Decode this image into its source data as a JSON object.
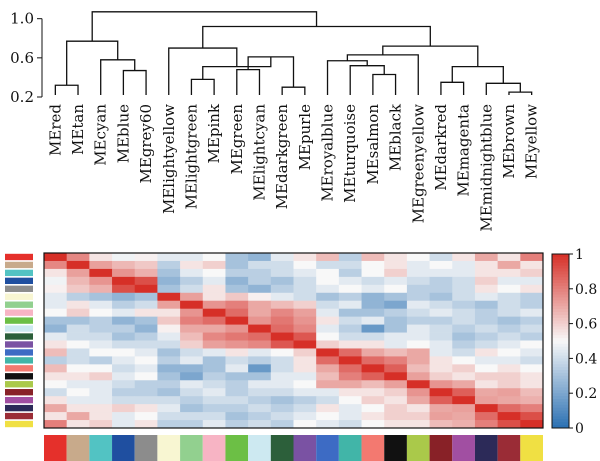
{
  "chart_data": [
    {
      "type": "dendrogram",
      "yticks": [
        "1.0",
        "0.6",
        "0.2"
      ],
      "ytick_values": [
        1.0,
        0.6,
        0.2
      ],
      "ylim": [
        0.2,
        1.15
      ],
      "leaves": [
        "MEred",
        "MEtan",
        "MEcyan",
        "MEblue",
        "MEgrey60",
        "MElightyellow",
        "MElightgreen",
        "MEpink",
        "MEgreen",
        "MElightcyan",
        "MEdarkgreen",
        "MEpurle",
        "MEroyalblue",
        "MEturquoise",
        "MEsalmon",
        "MEblack",
        "MEgreenyellow",
        "MEdarkred",
        "MEmagenta",
        "MEmidnightblue",
        "MEbrown",
        "MEyellow"
      ],
      "merges": [
        {
          "a": "MEred",
          "b": "MEtan",
          "height": 0.32,
          "id": "n1"
        },
        {
          "a": "MEblue",
          "b": "MEgrey60",
          "height": 0.47,
          "id": "n2"
        },
        {
          "a": "MEcyan",
          "b": "n2",
          "height": 0.58,
          "id": "n3"
        },
        {
          "a": "n1",
          "b": "n3",
          "height": 0.77,
          "id": "n4"
        },
        {
          "a": "MEgreen",
          "b": "MElightcyan",
          "height": 0.48,
          "id": "n5"
        },
        {
          "a": "MEdarkgreen",
          "b": "MEpurle",
          "height": 0.3,
          "id": "n6"
        },
        {
          "a": "n5",
          "b": "n6",
          "height": 0.61,
          "id": "n7"
        },
        {
          "a": "MElightgreen",
          "b": "MEpink",
          "height": 0.38,
          "id": "n8"
        },
        {
          "a": "n8",
          "b": "n7",
          "height": 0.51,
          "id": "n9"
        },
        {
          "a": "MElightyellow",
          "b": "n9",
          "height": 0.7,
          "id": "n10"
        },
        {
          "a": "MEsalmon",
          "b": "MEblack",
          "height": 0.43,
          "id": "n11"
        },
        {
          "a": "MEturquoise",
          "b": "n11",
          "height": 0.52,
          "id": "n12"
        },
        {
          "a": "MEroyalblue",
          "b": "n12",
          "height": 0.57,
          "id": "n13"
        },
        {
          "a": "MEgreenyellow",
          "b": "n13",
          "height": 0.63,
          "id": "n14"
        },
        {
          "a": "MEdarkred",
          "b": "MEmagenta",
          "height": 0.35,
          "id": "n15"
        },
        {
          "a": "MEbrown",
          "b": "MEyellow",
          "height": 0.25,
          "id": "n16"
        },
        {
          "a": "MEmidnightblue",
          "b": "n16",
          "height": 0.34,
          "id": "n17"
        },
        {
          "a": "n15",
          "b": "n17",
          "height": 0.51,
          "id": "n18"
        },
        {
          "a": "n14",
          "b": "n18",
          "height": 0.72,
          "id": "n19"
        },
        {
          "a": "n10",
          "b": "n19",
          "height": 0.92,
          "id": "n20"
        },
        {
          "a": "n4",
          "b": "n20",
          "height": 1.07,
          "id": "n21"
        }
      ]
    },
    {
      "type": "heatmap",
      "module_colors": [
        "#e5302b",
        "#c8aa8b",
        "#52c3c3",
        "#1f4fa0",
        "#8c8c8c",
        "#f8f6d2",
        "#92d08f",
        "#f7b4c4",
        "#6cbf45",
        "#cde9f1",
        "#2c5f3a",
        "#7a52a3",
        "#3d6bc4",
        "#41b5a8",
        "#f37970",
        "#111111",
        "#aac94a",
        "#882127",
        "#a14fa2",
        "#2c2a58",
        "#9a2c36",
        "#f0e043"
      ],
      "colorbar": {
        "ticks": [
          "1",
          "0.8",
          "0.6",
          "0.4",
          "0.2",
          "0"
        ],
        "tick_values": [
          1.0,
          0.8,
          0.6,
          0.4,
          0.2,
          0.0
        ],
        "range": [
          0,
          1
        ]
      },
      "values": [
        [
          1.0,
          0.78,
          0.55,
          0.48,
          0.52,
          0.45,
          0.45,
          0.5,
          0.3,
          0.25,
          0.45,
          0.55,
          0.65,
          0.35,
          0.65,
          0.55,
          0.5,
          0.4,
          0.55,
          0.7,
          0.55,
          0.8
        ],
        [
          0.78,
          1.0,
          0.72,
          0.66,
          0.62,
          0.35,
          0.55,
          0.6,
          0.3,
          0.4,
          0.4,
          0.5,
          0.4,
          0.4,
          0.5,
          0.55,
          0.45,
          0.5,
          0.45,
          0.55,
          0.7,
          0.55
        ],
        [
          0.55,
          0.72,
          1.0,
          0.75,
          0.68,
          0.3,
          0.45,
          0.5,
          0.35,
          0.35,
          0.4,
          0.45,
          0.5,
          0.35,
          0.5,
          0.6,
          0.45,
          0.45,
          0.45,
          0.55,
          0.55,
          0.6
        ],
        [
          0.48,
          0.66,
          0.75,
          1.0,
          0.92,
          0.25,
          0.35,
          0.45,
          0.25,
          0.35,
          0.3,
          0.4,
          0.5,
          0.45,
          0.4,
          0.45,
          0.4,
          0.35,
          0.4,
          0.6,
          0.45,
          0.45
        ],
        [
          0.52,
          0.62,
          0.68,
          0.92,
          1.0,
          0.3,
          0.4,
          0.55,
          0.3,
          0.25,
          0.35,
          0.4,
          0.45,
          0.5,
          0.45,
          0.5,
          0.35,
          0.35,
          0.4,
          0.55,
          0.5,
          0.55
        ],
        [
          0.45,
          0.35,
          0.3,
          0.25,
          0.3,
          1.0,
          0.72,
          0.55,
          0.62,
          0.52,
          0.45,
          0.4,
          0.3,
          0.35,
          0.25,
          0.3,
          0.35,
          0.3,
          0.4,
          0.45,
          0.4,
          0.35
        ],
        [
          0.45,
          0.55,
          0.45,
          0.35,
          0.4,
          0.72,
          1.0,
          0.75,
          0.8,
          0.7,
          0.65,
          0.6,
          0.4,
          0.45,
          0.25,
          0.2,
          0.45,
          0.4,
          0.35,
          0.3,
          0.4,
          0.35
        ],
        [
          0.5,
          0.6,
          0.5,
          0.45,
          0.55,
          0.55,
          0.75,
          1.0,
          0.85,
          0.7,
          0.78,
          0.72,
          0.45,
          0.3,
          0.3,
          0.35,
          0.4,
          0.45,
          0.4,
          0.35,
          0.4,
          0.45
        ],
        [
          0.3,
          0.3,
          0.35,
          0.25,
          0.3,
          0.62,
          0.8,
          0.85,
          1.0,
          0.75,
          0.82,
          0.75,
          0.55,
          0.4,
          0.45,
          0.3,
          0.35,
          0.35,
          0.4,
          0.35,
          0.3,
          0.35
        ],
        [
          0.25,
          0.4,
          0.35,
          0.35,
          0.25,
          0.52,
          0.7,
          0.7,
          0.75,
          1.0,
          0.85,
          0.78,
          0.45,
          0.35,
          0.15,
          0.3,
          0.45,
          0.4,
          0.35,
          0.4,
          0.35,
          0.4
        ],
        [
          0.45,
          0.4,
          0.4,
          0.3,
          0.35,
          0.45,
          0.65,
          0.78,
          0.82,
          0.85,
          1.0,
          0.9,
          0.5,
          0.4,
          0.4,
          0.45,
          0.45,
          0.4,
          0.3,
          0.35,
          0.4,
          0.35
        ],
        [
          0.55,
          0.5,
          0.45,
          0.4,
          0.4,
          0.4,
          0.6,
          0.72,
          0.75,
          0.78,
          0.9,
          1.0,
          0.6,
          0.55,
          0.55,
          0.45,
          0.5,
          0.45,
          0.35,
          0.4,
          0.45,
          0.5
        ],
        [
          0.65,
          0.4,
          0.5,
          0.5,
          0.45,
          0.3,
          0.4,
          0.45,
          0.55,
          0.45,
          0.5,
          0.6,
          1.0,
          0.85,
          0.7,
          0.65,
          0.7,
          0.45,
          0.4,
          0.55,
          0.5,
          0.45
        ],
        [
          0.35,
          0.4,
          0.35,
          0.45,
          0.5,
          0.35,
          0.45,
          0.3,
          0.4,
          0.35,
          0.4,
          0.55,
          0.85,
          1.0,
          0.85,
          0.8,
          0.7,
          0.55,
          0.5,
          0.45,
          0.45,
          0.4
        ],
        [
          0.65,
          0.5,
          0.5,
          0.4,
          0.45,
          0.25,
          0.25,
          0.3,
          0.45,
          0.15,
          0.4,
          0.55,
          0.7,
          0.85,
          1.0,
          0.88,
          0.65,
          0.55,
          0.6,
          0.5,
          0.55,
          0.5
        ],
        [
          0.55,
          0.55,
          0.6,
          0.45,
          0.5,
          0.3,
          0.2,
          0.35,
          0.3,
          0.3,
          0.45,
          0.45,
          0.65,
          0.8,
          0.88,
          1.0,
          0.72,
          0.6,
          0.55,
          0.6,
          0.6,
          0.55
        ],
        [
          0.5,
          0.45,
          0.45,
          0.4,
          0.35,
          0.35,
          0.45,
          0.4,
          0.35,
          0.45,
          0.45,
          0.5,
          0.7,
          0.7,
          0.65,
          0.72,
          1.0,
          0.75,
          0.7,
          0.55,
          0.6,
          0.55
        ],
        [
          0.4,
          0.5,
          0.45,
          0.35,
          0.35,
          0.3,
          0.4,
          0.45,
          0.35,
          0.4,
          0.4,
          0.45,
          0.45,
          0.55,
          0.55,
          0.6,
          0.75,
          1.0,
          0.88,
          0.7,
          0.72,
          0.65
        ],
        [
          0.55,
          0.45,
          0.45,
          0.4,
          0.4,
          0.4,
          0.35,
          0.4,
          0.4,
          0.35,
          0.3,
          0.35,
          0.4,
          0.5,
          0.6,
          0.55,
          0.7,
          0.88,
          1.0,
          0.72,
          0.7,
          0.68
        ],
        [
          0.7,
          0.55,
          0.55,
          0.6,
          0.55,
          0.45,
          0.3,
          0.35,
          0.35,
          0.4,
          0.35,
          0.4,
          0.55,
          0.45,
          0.5,
          0.6,
          0.55,
          0.7,
          0.72,
          1.0,
          0.85,
          0.8
        ],
        [
          0.55,
          0.7,
          0.55,
          0.45,
          0.5,
          0.4,
          0.4,
          0.4,
          0.3,
          0.35,
          0.4,
          0.45,
          0.5,
          0.45,
          0.55,
          0.6,
          0.6,
          0.72,
          0.7,
          0.85,
          1.0,
          0.92
        ],
        [
          0.8,
          0.55,
          0.6,
          0.45,
          0.55,
          0.35,
          0.35,
          0.45,
          0.35,
          0.4,
          0.35,
          0.5,
          0.45,
          0.4,
          0.5,
          0.55,
          0.55,
          0.65,
          0.68,
          0.8,
          0.92,
          1.0
        ]
      ]
    }
  ]
}
